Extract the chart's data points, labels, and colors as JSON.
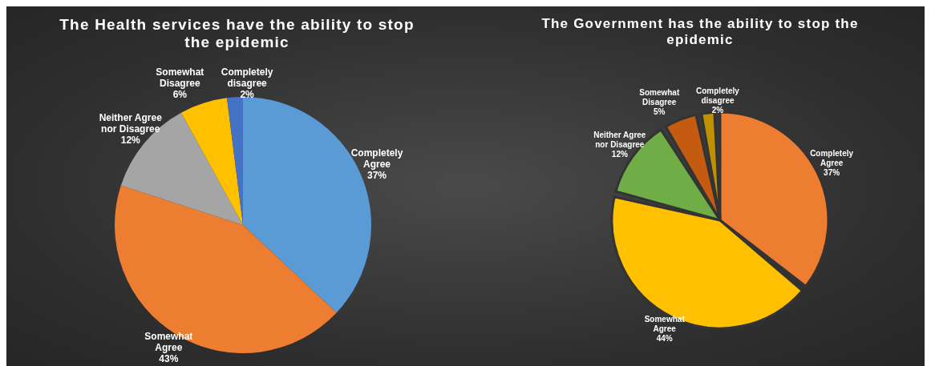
{
  "chart_data": [
    {
      "type": "pie",
      "title": "The Health services have the ability to stop the epidemic",
      "categories": [
        "Completely Agree",
        "Somewhat Agree",
        "Neither Agree nor Disagree",
        "Somewhat Disagree",
        "Completely disagree"
      ],
      "values": [
        37,
        43,
        12,
        6,
        2
      ],
      "colors": [
        "#5b9bd5",
        "#ed7d31",
        "#a5a5a5",
        "#ffc000",
        "#4472c4"
      ],
      "value_labels": [
        "37%",
        "43%",
        "12%",
        "6%",
        "2%"
      ],
      "legend": false
    },
    {
      "type": "pie",
      "title": "The Government has the ability to stop the epidemic",
      "categories": [
        "Completely Agree",
        "Somewhat Agree",
        "Neither Agree nor Disagree",
        "Somewhat Disagree",
        "Completely disagree"
      ],
      "values": [
        37,
        44,
        12,
        5,
        2
      ],
      "colors": [
        "#ed7d31",
        "#ffc000",
        "#70ad47",
        "#c55a11",
        "#bf9000"
      ],
      "value_labels": [
        "37%",
        "44%",
        "12%",
        "5%",
        "2%"
      ],
      "legend": false
    }
  ]
}
